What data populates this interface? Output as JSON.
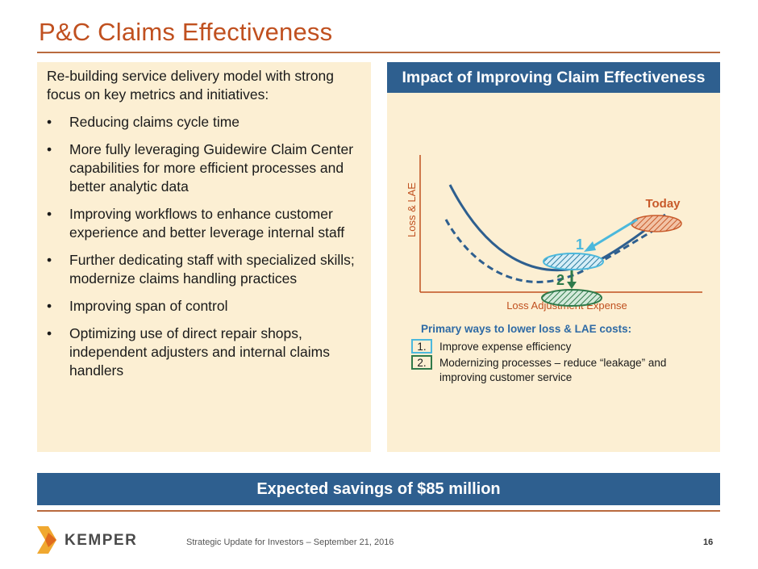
{
  "header": {
    "title": "P&C Claims Effectiveness"
  },
  "left_panel": {
    "intro": "Re-building service delivery model with strong focus on key metrics and initiatives:",
    "bullets": [
      "Reducing claims cycle time",
      "More fully leveraging Guidewire Claim Center capabilities for more efficient processes and better analytic data",
      "Improving workflows to enhance customer experience and better leverage internal staff",
      "Further dedicating staff with specialized skills; modernize claims handling practices",
      "Improving span of control",
      "Optimizing use of direct repair shops, independent adjusters and internal claims handlers"
    ]
  },
  "right_panel": {
    "title": "Impact of Improving Claim Effectiveness",
    "diagram": {
      "y_axis_label": "Loss & LAE",
      "x_axis_label": "Loss Adjustment Expense",
      "today_label": "Today",
      "step1_label": "1",
      "step2_label": "2"
    },
    "legend": {
      "title": "Primary ways to lower loss & LAE costs:",
      "items": [
        {
          "num": "1.",
          "text": "Improve expense efficiency"
        },
        {
          "num": "2.",
          "text": "Modernizing processes – reduce “leakage” and improving customer service"
        }
      ]
    }
  },
  "banner": {
    "text": "Expected savings of $85 million"
  },
  "footer": {
    "logo_text": "KEMPER",
    "text": "Strategic Update for Investors – September 21, 2016",
    "page_number": "16"
  },
  "colors": {
    "title": "#c0501f",
    "accent_blue": "#2e5f8f",
    "panel_bg": "#fcefd3",
    "today": "#c85a2a",
    "step1": "#4bb8dc",
    "step2": "#2f7a4a"
  }
}
